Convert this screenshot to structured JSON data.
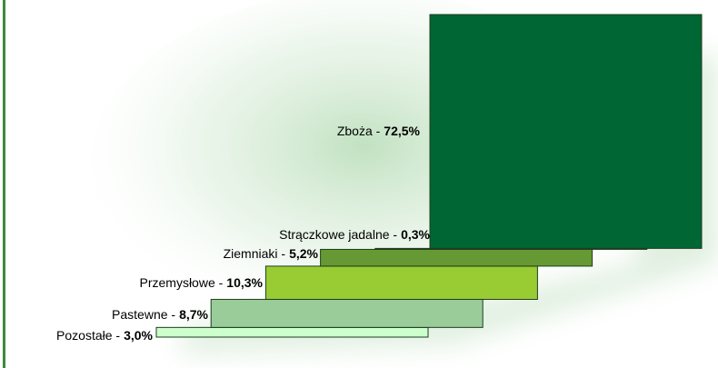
{
  "chart_data": {
    "type": "step-bar",
    "categories": [
      "Zboża -",
      "Strączkowe jadalne -",
      "Ziemniaki -",
      "Przemysłowe -",
      "Pastewne -",
      "Pozostałe -"
    ],
    "values": [
      72.5,
      0.3,
      5.2,
      10.3,
      8.7,
      3.0
    ],
    "value_labels": [
      "72,5%",
      "0,3%",
      "5,2%",
      "10,3%",
      "8,7%",
      "3,0%"
    ],
    "colors": [
      "#006633",
      "#336633",
      "#669933",
      "#99cc33",
      "#99cc99",
      "#ccffcc"
    ]
  }
}
